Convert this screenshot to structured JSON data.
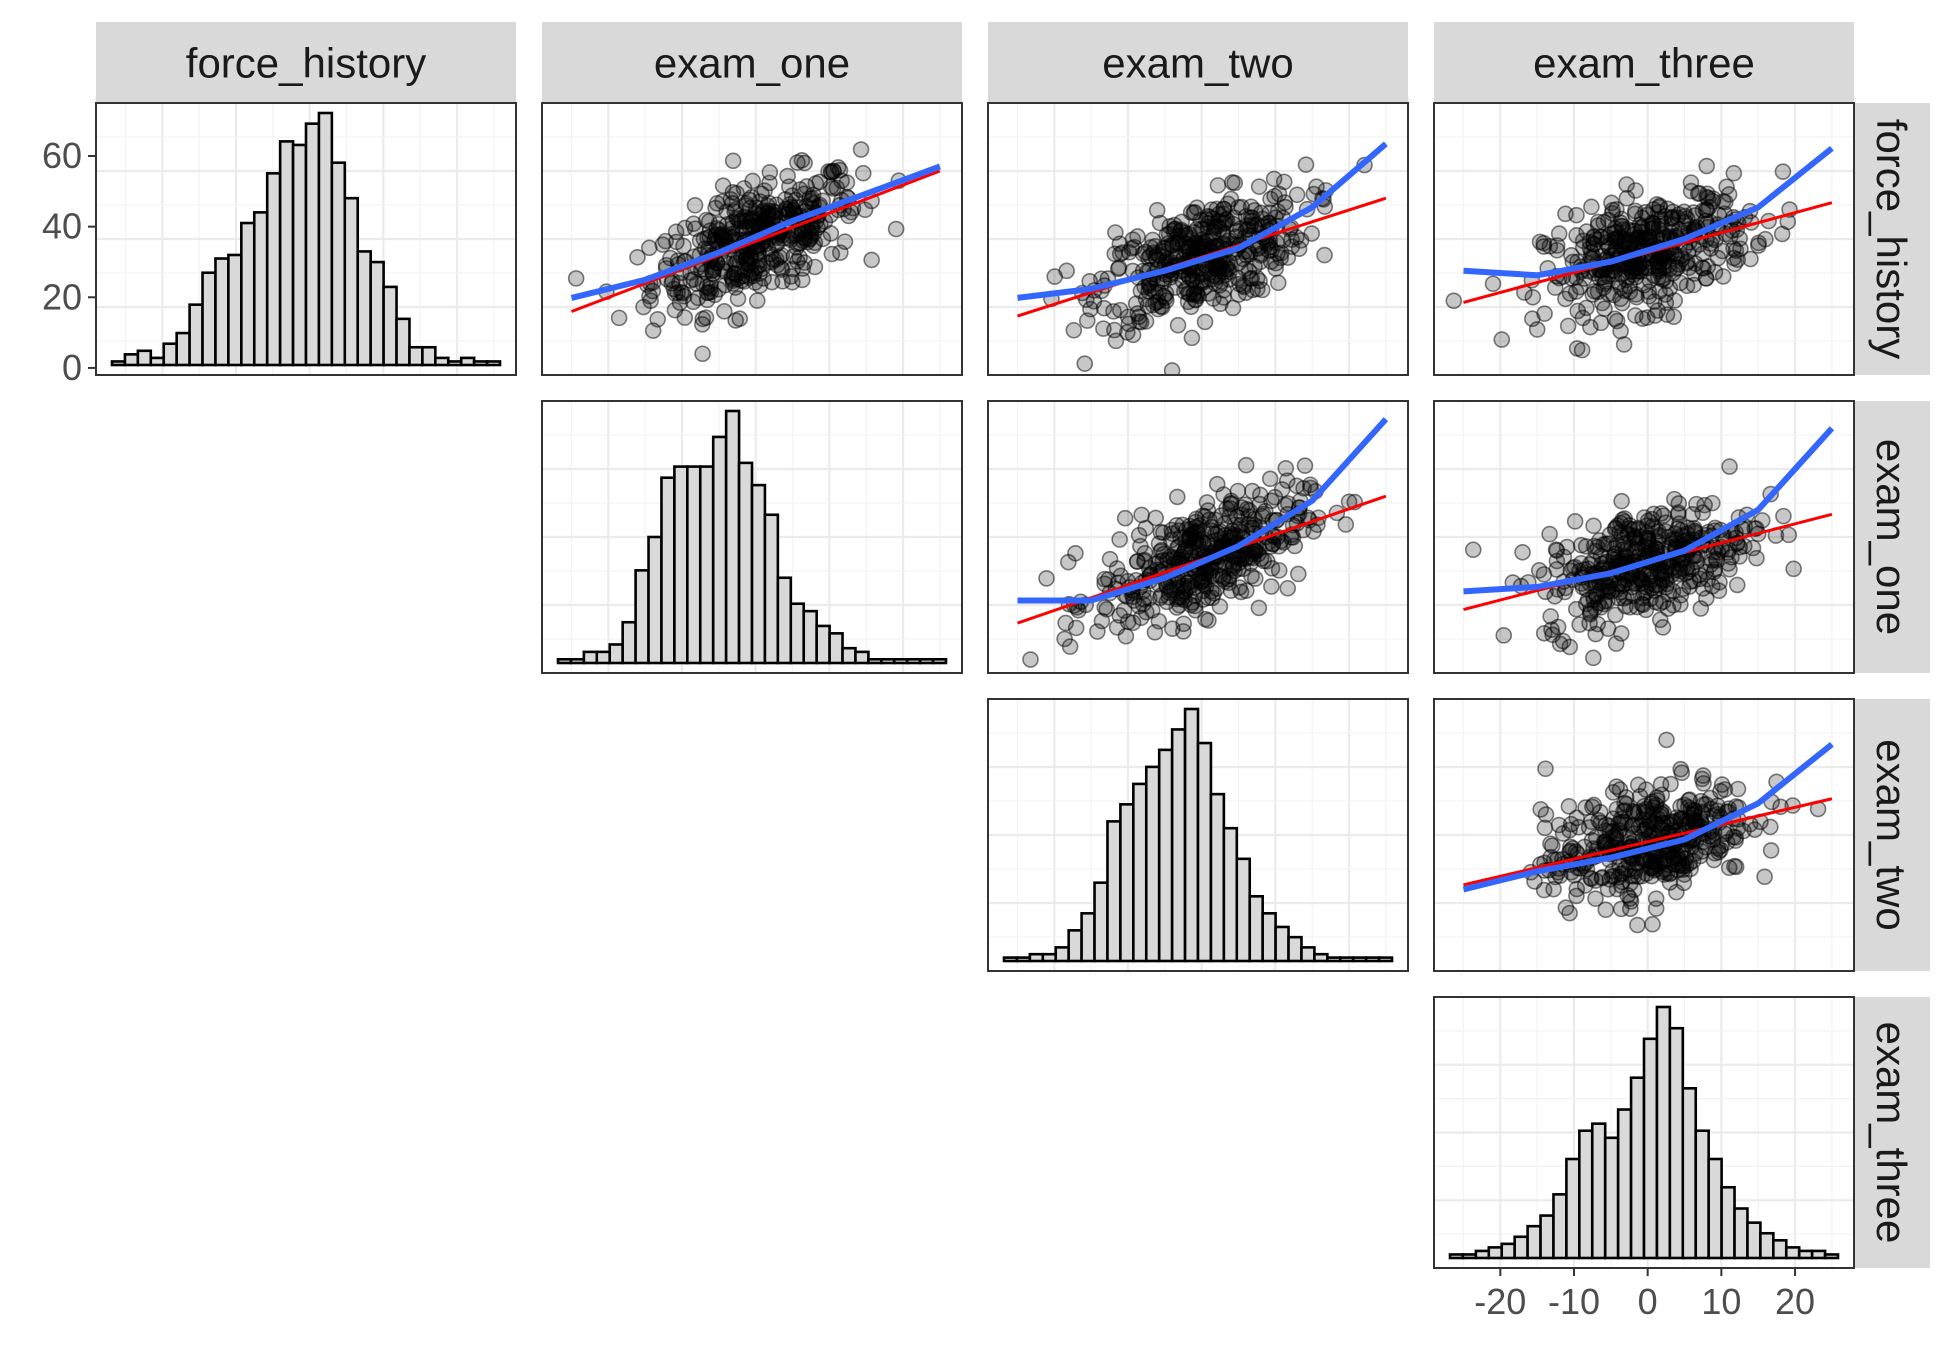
{
  "chart_data": {
    "type": "scatter_matrix",
    "variables": [
      "force_history",
      "exam_one",
      "exam_two",
      "exam_three"
    ],
    "column_labels": [
      "force_history",
      "exam_one",
      "exam_two",
      "exam_three"
    ],
    "row_labels": [
      "force_history",
      "exam_one",
      "exam_two",
      "exam_three"
    ],
    "y_axis": {
      "ticks": [
        0,
        20,
        40,
        60
      ],
      "tick_labels": [
        "0",
        "20",
        "40",
        "60"
      ],
      "range": [
        -2,
        75
      ]
    },
    "x_axis": {
      "ticks": [
        -20,
        -10,
        0,
        10,
        20
      ],
      "tick_labels": [
        "-20",
        "-10",
        "0",
        "10",
        "20"
      ],
      "range": [
        -29,
        28
      ]
    },
    "histograms": [
      {
        "variable": "force_history",
        "bins": 30,
        "counts": [
          1,
          3,
          4,
          2,
          6,
          9,
          17,
          26,
          30,
          31,
          40,
          43,
          54,
          63,
          62,
          68,
          71,
          57,
          47,
          32,
          29,
          22,
          13,
          5,
          5,
          2,
          1,
          2,
          1,
          1
        ]
      },
      {
        "variable": "exam_one",
        "bins": 30,
        "counts": [
          1,
          1,
          3,
          3,
          5,
          11,
          25,
          34,
          50,
          53,
          53,
          53,
          61,
          68,
          54,
          48,
          40,
          23,
          16,
          14,
          10,
          8,
          4,
          3,
          1,
          1,
          1,
          1,
          1,
          1
        ]
      },
      {
        "variable": "exam_two",
        "bins": 30,
        "counts": [
          1,
          1,
          2,
          2,
          4,
          9,
          14,
          23,
          41,
          46,
          52,
          57,
          62,
          68,
          74,
          64,
          49,
          39,
          30,
          19,
          14,
          10,
          7,
          4,
          2,
          1,
          1,
          1,
          1,
          1
        ]
      },
      {
        "variable": "exam_three",
        "bins": 30,
        "counts": [
          1,
          1,
          2,
          3,
          4,
          6,
          9,
          12,
          18,
          28,
          36,
          38,
          34,
          42,
          51,
          62,
          71,
          65,
          48,
          36,
          28,
          20,
          14,
          10,
          7,
          5,
          3,
          2,
          2,
          1
        ]
      }
    ],
    "scatter_panels": [
      {
        "x": "exam_one",
        "y": "force_history",
        "linear_fit": [
          [
            -25,
            -16
          ],
          [
            25,
            15
          ]
        ],
        "loess_fit": [
          [
            -25,
            -13
          ],
          [
            -15,
            -9
          ],
          [
            -5,
            -3
          ],
          [
            5,
            4
          ],
          [
            15,
            10
          ],
          [
            25,
            16
          ]
        ]
      },
      {
        "x": "exam_two",
        "y": "force_history",
        "linear_fit": [
          [
            -25,
            -17
          ],
          [
            25,
            9
          ]
        ],
        "loess_fit": [
          [
            -25,
            -13
          ],
          [
            -15,
            -11
          ],
          [
            -5,
            -7
          ],
          [
            5,
            -2
          ],
          [
            15,
            7
          ],
          [
            25,
            21
          ]
        ]
      },
      {
        "x": "exam_three",
        "y": "force_history",
        "linear_fit": [
          [
            -25,
            -14
          ],
          [
            25,
            8
          ]
        ],
        "loess_fit": [
          [
            -25,
            -7
          ],
          [
            -15,
            -8
          ],
          [
            -5,
            -5
          ],
          [
            5,
            0
          ],
          [
            15,
            7
          ],
          [
            25,
            20
          ]
        ]
      },
      {
        "x": "exam_two",
        "y": "exam_one",
        "linear_fit": [
          [
            -25,
            -19
          ],
          [
            25,
            9
          ]
        ],
        "loess_fit": [
          [
            -25,
            -14
          ],
          [
            -15,
            -14
          ],
          [
            -5,
            -9
          ],
          [
            5,
            -2
          ],
          [
            15,
            8
          ],
          [
            25,
            26
          ]
        ]
      },
      {
        "x": "exam_three",
        "y": "exam_one",
        "linear_fit": [
          [
            -25,
            -16
          ],
          [
            25,
            5
          ]
        ],
        "loess_fit": [
          [
            -25,
            -12
          ],
          [
            -15,
            -11
          ],
          [
            -5,
            -8
          ],
          [
            5,
            -3
          ],
          [
            15,
            6
          ],
          [
            25,
            24
          ]
        ]
      },
      {
        "x": "exam_three",
        "y": "exam_two",
        "linear_fit": [
          [
            -25,
            -11
          ],
          [
            25,
            8
          ]
        ],
        "loess_fit": [
          [
            -25,
            -12
          ],
          [
            -15,
            -8
          ],
          [
            -5,
            -5
          ],
          [
            5,
            -1
          ],
          [
            15,
            7
          ],
          [
            25,
            20
          ]
        ]
      }
    ],
    "colors": {
      "histogram_fill": "#d9d9d9",
      "point": "#000000",
      "linear_fit": "#ff0000",
      "loess_fit": "#3366ff"
    }
  }
}
